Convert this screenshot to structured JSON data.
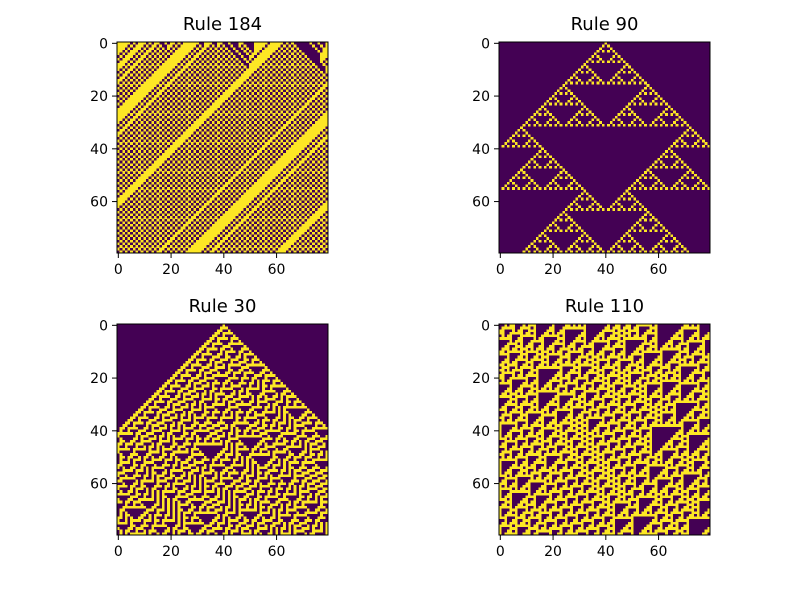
{
  "figure": {
    "background": "#ffffff",
    "colormap": "viridis",
    "off_color": "#440154",
    "on_color": "#fde725"
  },
  "chart_data": [
    {
      "type": "heatmap",
      "title": "Rule 184",
      "rule": 184,
      "width": 80,
      "steps": 80,
      "initial_condition": "random",
      "boundary": "periodic",
      "xlim": [
        0,
        79
      ],
      "ylim": [
        79,
        0
      ],
      "xticks": [
        "0",
        "20",
        "40",
        "60"
      ],
      "yticks": [
        "0",
        "20",
        "40",
        "60"
      ],
      "grid": false
    },
    {
      "type": "heatmap",
      "title": "Rule 90",
      "rule": 90,
      "width": 80,
      "steps": 80,
      "initial_condition": "single-cell-center",
      "boundary": "periodic",
      "xlim": [
        0,
        79
      ],
      "ylim": [
        79,
        0
      ],
      "xticks": [
        "0",
        "20",
        "40",
        "60"
      ],
      "yticks": [
        "0",
        "20",
        "40",
        "60"
      ],
      "grid": false
    },
    {
      "type": "heatmap",
      "title": "Rule 30",
      "rule": 30,
      "width": 80,
      "steps": 80,
      "initial_condition": "single-cell-center",
      "boundary": "periodic",
      "xlim": [
        0,
        79
      ],
      "ylim": [
        79,
        0
      ],
      "xticks": [
        "0",
        "20",
        "40",
        "60"
      ],
      "yticks": [
        "0",
        "20",
        "40",
        "60"
      ],
      "grid": false
    },
    {
      "type": "heatmap",
      "title": "Rule 110",
      "rule": 110,
      "width": 80,
      "steps": 80,
      "initial_condition": "random",
      "boundary": "periodic",
      "xlim": [
        0,
        79
      ],
      "ylim": [
        79,
        0
      ],
      "xticks": [
        "0",
        "20",
        "40",
        "60"
      ],
      "yticks": [
        "0",
        "20",
        "40",
        "60"
      ],
      "grid": false
    }
  ]
}
